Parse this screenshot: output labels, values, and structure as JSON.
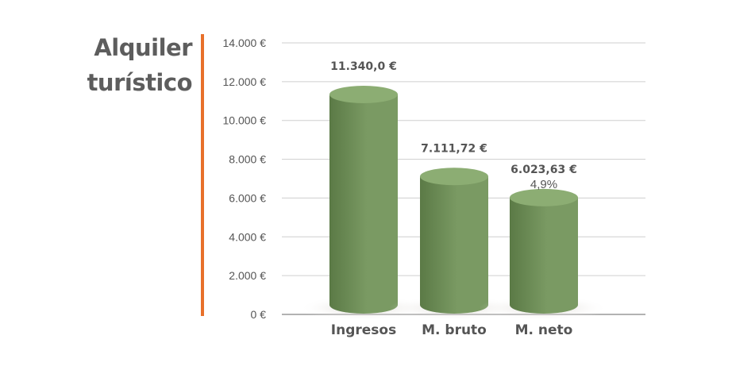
{
  "title": [
    "Alquiler",
    "turístico"
  ],
  "colors": {
    "accent": "#e8702a",
    "bar_light": "#7a9a63",
    "bar_dark": "#5b7a46",
    "bar_top": "#8cad73",
    "grid": "#cfcfcf",
    "axis": "#999999"
  },
  "chart_data": {
    "type": "bar",
    "title": "Alquiler turístico",
    "categories": [
      "Ingresos",
      "M. bruto",
      "M. neto"
    ],
    "values": [
      11340.0,
      7111.72,
      6023.63
    ],
    "value_labels": [
      "11.340,0 €",
      "7.111,72 €",
      "6.023,63 €"
    ],
    "annotations": [
      "",
      "",
      "4,9%"
    ],
    "ylim": [
      0,
      14000
    ],
    "yticks": [
      0,
      2000,
      4000,
      6000,
      8000,
      10000,
      12000,
      14000
    ],
    "ytick_labels": [
      "0 €",
      "2.000 €",
      "4.000 €",
      "6.000 €",
      "8.000 €",
      "10.000 €",
      "12.000 €",
      "14.000 €"
    ],
    "grid": true,
    "xlabel": "",
    "ylabel": ""
  }
}
